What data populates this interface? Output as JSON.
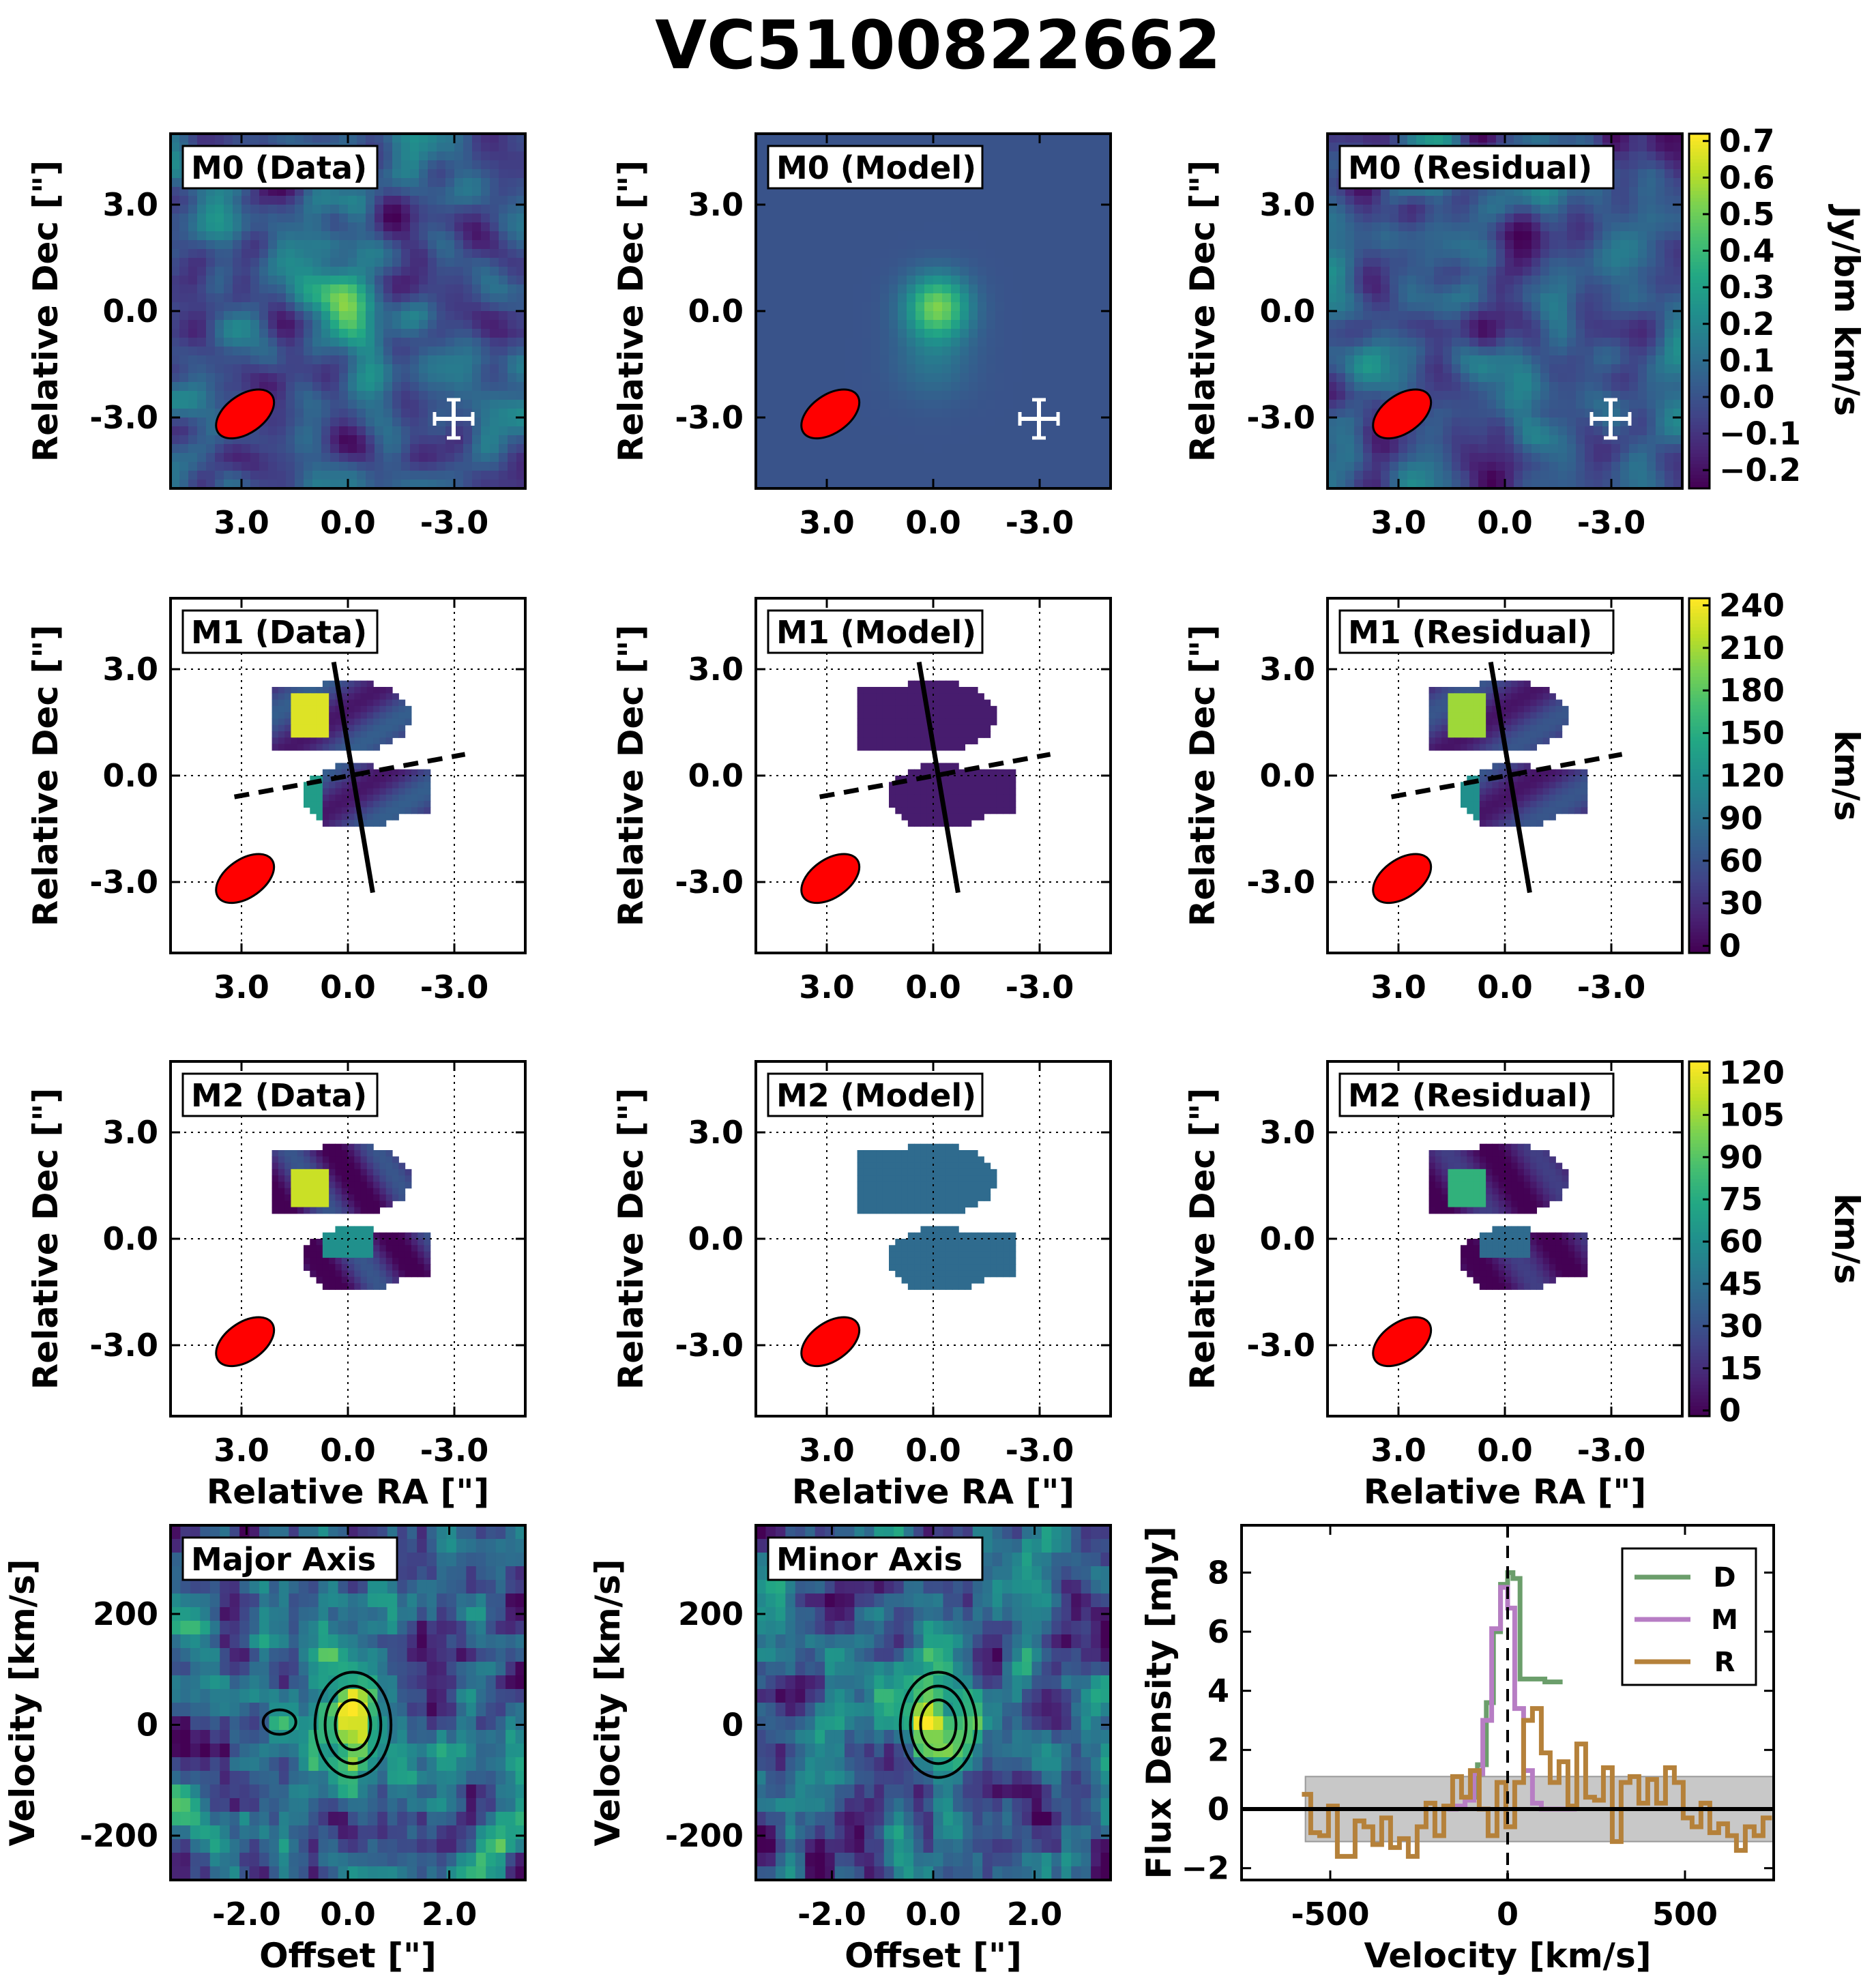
{
  "figure": {
    "title": "VC5100822662"
  },
  "colorbars": [
    {
      "label": "Jy/bm km/s",
      "ticks": [
        "0.7",
        "0.6",
        "0.5",
        "0.4",
        "0.3",
        "0.2",
        "0.1",
        "0.0",
        "−0.1",
        "−0.2"
      ],
      "range": [
        -0.25,
        0.72
      ]
    },
    {
      "label": "km/s",
      "ticks": [
        "240",
        "210",
        "180",
        "150",
        "120",
        "90",
        "60",
        "30",
        "0"
      ],
      "range": [
        -5,
        245
      ]
    },
    {
      "label": "km/s",
      "ticks": [
        "120",
        "105",
        "90",
        "75",
        "60",
        "45",
        "30",
        "15",
        "0"
      ],
      "range": [
        -2,
        124
      ]
    }
  ],
  "map_axes": {
    "xlabel": "Relative RA [\"]",
    "ylabel": "Relative Dec [\"]",
    "xticks": [
      "3.0",
      "0.0",
      "-3.0"
    ],
    "yticks": [
      "3.0",
      "0.0",
      "-3.0"
    ],
    "xlim": [
      4.2,
      -4.2
    ],
    "ylim": [
      -4.2,
      4.2
    ]
  },
  "panel_labels": {
    "m0_data": "M0 (Data)",
    "m0_model": "M0 (Model)",
    "m0_residual": "M0 (Residual)",
    "m1_data": "M1 (Data)",
    "m1_model": "M1 (Model)",
    "m1_residual": "M1 (Residual)",
    "m2_data": "M2 (Data)",
    "m2_model": "M2 (Model)",
    "m2_residual": "M2 (Residual)",
    "major_axis": "Major Axis",
    "minor_axis": "Minor Axis"
  },
  "pv_axes": {
    "xlabel": "Offset [\"]",
    "ylabel": "Velocity [km/s]",
    "xticks": [
      "-2.0",
      "0.0",
      "2.0"
    ],
    "yticks": [
      "200",
      "0",
      "-200"
    ],
    "xlim": [
      -3.5,
      3.5
    ],
    "ylim": [
      -280,
      360
    ]
  },
  "chart_data": {
    "type": "line",
    "xlabel": "Velocity [km/s]",
    "ylabel": "Flux Density [mJy]",
    "xlim": [
      -750,
      750
    ],
    "ylim": [
      -2.4,
      9.6
    ],
    "xticks": [
      "-500",
      "0",
      "500"
    ],
    "yticks": [
      "8",
      "6",
      "4",
      "2",
      "0",
      "−2"
    ],
    "legend_position": "top-right",
    "noise_band": [
      -1.1,
      1.1
    ],
    "noise_band_x": [
      -570,
      750
    ],
    "series": [
      {
        "name": "D",
        "color": "#6b9e6b",
        "step_x": [
          -110,
          -85,
          -60,
          -40,
          -20,
          0,
          15,
          35,
          55,
          80,
          105,
          130
        ],
        "values": [
          0.4,
          1.5,
          3.6,
          6.0,
          7.6,
          8.0,
          7.8,
          4.4,
          4.4,
          4.4,
          4.3,
          4.3
        ]
      },
      {
        "name": "M",
        "color": "#b77dc4",
        "step_x": [
          -170,
          -145,
          -120,
          -95,
          -70,
          -45,
          -20,
          0,
          20,
          45,
          70,
          95,
          120,
          145,
          170
        ],
        "values": [
          0.0,
          0.1,
          0.3,
          1.2,
          3.0,
          6.1,
          7.5,
          6.8,
          3.4,
          1.3,
          0.2,
          0.0,
          0.0,
          0.0,
          0.0
        ]
      },
      {
        "name": "R",
        "color": "#b5813a",
        "step_x": [
          -580,
          -555,
          -530,
          -505,
          -480,
          -455,
          -430,
          -405,
          -380,
          -355,
          -330,
          -305,
          -280,
          -255,
          -230,
          -205,
          -180,
          -155,
          -130,
          -105,
          -80,
          -55,
          -30,
          -5,
          20,
          45,
          70,
          95,
          120,
          145,
          170,
          195,
          220,
          245,
          270,
          295,
          320,
          345,
          370,
          395,
          420,
          445,
          470,
          495,
          520,
          545,
          570,
          595,
          620,
          645,
          670,
          695,
          720
        ],
        "values": [
          0.5,
          -0.8,
          -0.9,
          0.1,
          -1.6,
          -1.6,
          -0.4,
          -0.6,
          -1.2,
          -0.3,
          -1.3,
          -1.0,
          -1.6,
          -0.6,
          0.2,
          -0.9,
          0.1,
          1.1,
          0.4,
          1.3,
          0.0,
          -0.9,
          0.9,
          -0.6,
          0.9,
          3.0,
          3.4,
          1.9,
          0.9,
          1.6,
          0.1,
          2.2,
          0.4,
          0.3,
          1.4,
          -1.1,
          0.9,
          1.1,
          0.2,
          1.0,
          0.2,
          1.4,
          0.9,
          -0.3,
          -0.6,
          0.2,
          -0.8,
          -0.5,
          -0.9,
          -1.4,
          -0.6,
          -0.9,
          -0.3
        ]
      }
    ]
  }
}
